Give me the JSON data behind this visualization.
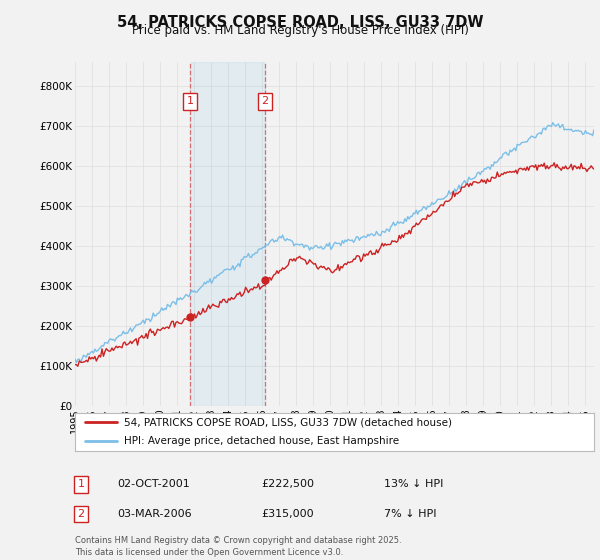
{
  "title": "54, PATRICKS COPSE ROAD, LISS, GU33 7DW",
  "subtitle": "Price paid vs. HM Land Registry's House Price Index (HPI)",
  "ylabel_ticks": [
    "£0",
    "£100K",
    "£200K",
    "£300K",
    "£400K",
    "£500K",
    "£600K",
    "£700K",
    "£800K"
  ],
  "ytick_values": [
    0,
    100000,
    200000,
    300000,
    400000,
    500000,
    600000,
    700000,
    800000
  ],
  "ylim": [
    0,
    860000
  ],
  "xlim_start": 1995.0,
  "xlim_end": 2025.5,
  "hpi_color": "#7bbfe8",
  "price_color": "#cc2222",
  "sale1_year": 2001.75,
  "sale1_price": 222500,
  "sale2_year": 2006.17,
  "sale2_price": 315000,
  "legend_line1": "54, PATRICKS COPSE ROAD, LISS, GU33 7DW (detached house)",
  "legend_line2": "HPI: Average price, detached house, East Hampshire",
  "sale1_date": "02-OCT-2001",
  "sale1_amount": "£222,500",
  "sale1_pct": "13% ↓ HPI",
  "sale2_date": "03-MAR-2006",
  "sale2_amount": "£315,000",
  "sale2_pct": "7% ↓ HPI",
  "footnote": "Contains HM Land Registry data © Crown copyright and database right 2025.\nThis data is licensed under the Open Government Licence v3.0.",
  "bg_color": "#f2f2f2",
  "plot_bg": "#f2f2f2",
  "grid_color": "#dddddd"
}
